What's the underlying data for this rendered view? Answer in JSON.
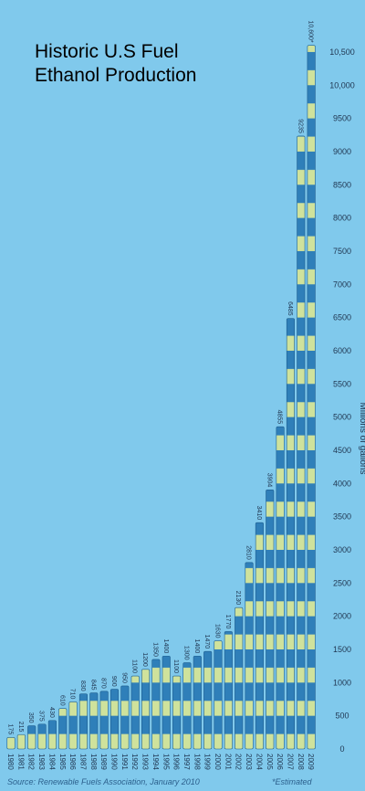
{
  "chart_data": {
    "type": "bar",
    "title": "Historic U.S Fuel Ethanol Production",
    "y_label": "Millions of gallons",
    "source": "Source: Renewable Fuels Association, January 2010",
    "footnote": "*Estimated",
    "categories": [
      "1980",
      "1981",
      "1982",
      "1983",
      "1984",
      "1985",
      "1986",
      "1987",
      "1988",
      "1989",
      "1990",
      "1991",
      "1992",
      "1993",
      "1994",
      "1995",
      "1996",
      "1997",
      "1998",
      "1999",
      "2000",
      "2001",
      "2002",
      "2003",
      "2004",
      "2005",
      "2006",
      "2007",
      "2008",
      "2009"
    ],
    "values": [
      175,
      215,
      350,
      375,
      430,
      610,
      710,
      830,
      845,
      870,
      900,
      950,
      1100,
      1200,
      1350,
      1400,
      1100,
      1300,
      1400,
      1470,
      1630,
      1770,
      2130,
      2810,
      3410,
      3904,
      4855,
      6485,
      9235,
      10600
    ],
    "value_labels": [
      "175",
      "215",
      "350",
      "375",
      "430",
      "610",
      "710",
      "830",
      "845",
      "870",
      "900",
      "950",
      "1100",
      "1200",
      "1350",
      "1400",
      "1100",
      "1300",
      "1400",
      "1470",
      "1630",
      "1770",
      "2130",
      "2810",
      "3410",
      "3904",
      "4855",
      "6485",
      "9235",
      "10,600*"
    ],
    "color": "#2f7fb9",
    "stripe_color": "#cfe29c",
    "ylim": [
      0,
      10700
    ],
    "yticks": [
      0,
      500,
      1000,
      1500,
      2000,
      2500,
      3000,
      3500,
      4000,
      4500,
      5000,
      5500,
      6000,
      6500,
      7000,
      7500,
      8000,
      8500,
      9000,
      9500,
      {
        "value": 10000,
        "label": "10,000"
      },
      {
        "value": 10500,
        "label": "10,500"
      }
    ],
    "grid": false
  }
}
